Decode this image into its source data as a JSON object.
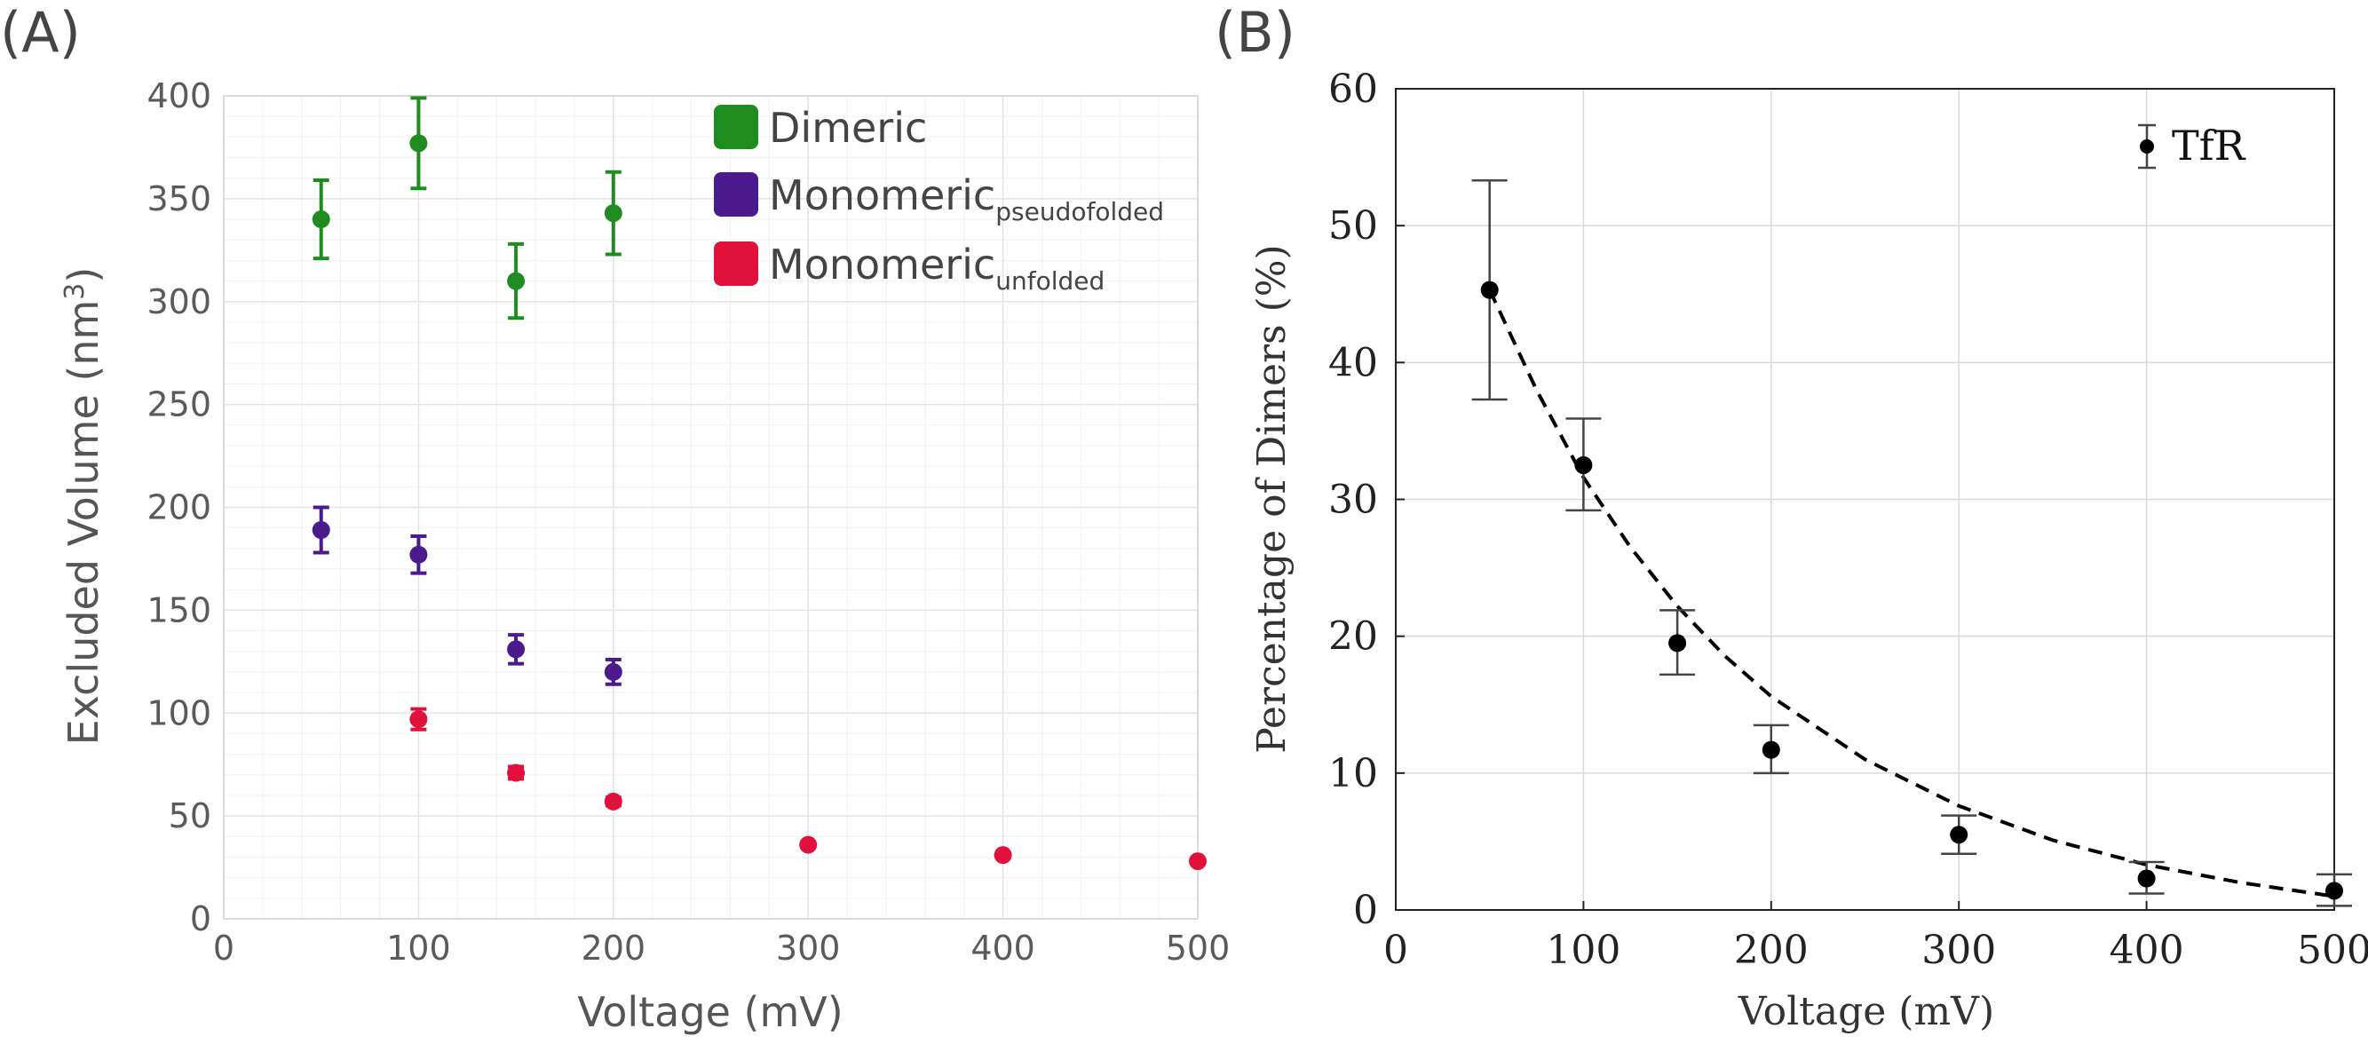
{
  "colors": {
    "dimeric": "#1e8c1e",
    "pseudofolded": "#4b1a8c",
    "unfolded": "#e0123c",
    "tfr": "#000000",
    "axis_text_a": "#5a5a5a",
    "grid_a": "#e4e4e4",
    "grid_minor_a": "#f2f2f2",
    "grid_b": "#d9d9d9"
  },
  "chart_data": [
    {
      "panel_label": "(A)",
      "type": "scatter",
      "title": "",
      "xlabel": "Voltage (mV)",
      "ylabel_main": "Excluded Volume (nm",
      "ylabel_sup": "3",
      "ylabel_end": ")",
      "xlim": [
        0,
        500
      ],
      "ylim": [
        0,
        400
      ],
      "xticks": [
        0,
        100,
        200,
        300,
        400,
        500
      ],
      "yticks": [
        0,
        50,
        100,
        150,
        200,
        250,
        300,
        350,
        400
      ],
      "grid": true,
      "legend_position": "top-right",
      "series": [
        {
          "name": "Dimeric",
          "legend_main": "Dimeric",
          "legend_sub": "",
          "color_key": "dimeric",
          "points": [
            {
              "x": 50,
              "y": 340,
              "err": 19
            },
            {
              "x": 100,
              "y": 377,
              "err": 22
            },
            {
              "x": 150,
              "y": 310,
              "err": 18
            },
            {
              "x": 200,
              "y": 343,
              "err": 20
            }
          ]
        },
        {
          "name": "Monomeric pseudofolded",
          "legend_main": "Monomeric",
          "legend_sub": "pseudofolded",
          "color_key": "pseudofolded",
          "points": [
            {
              "x": 50,
              "y": 189,
              "err": 11
            },
            {
              "x": 100,
              "y": 177,
              "err": 9
            },
            {
              "x": 150,
              "y": 131,
              "err": 7
            },
            {
              "x": 200,
              "y": 120,
              "err": 6
            }
          ]
        },
        {
          "name": "Monomeric unfolded",
          "legend_main": "Monomeric",
          "legend_sub": "unfolded",
          "color_key": "unfolded",
          "points": [
            {
              "x": 100,
              "y": 97,
              "err": 5
            },
            {
              "x": 150,
              "y": 71,
              "err": 3
            },
            {
              "x": 200,
              "y": 57,
              "err": 2
            },
            {
              "x": 300,
              "y": 36,
              "err": 1
            },
            {
              "x": 400,
              "y": 31,
              "err": 1
            },
            {
              "x": 500,
              "y": 28,
              "err": 1
            }
          ]
        }
      ]
    },
    {
      "panel_label": "(B)",
      "type": "scatter",
      "title": "",
      "xlabel": "Voltage (mV)",
      "ylabel": "Percentage of Dimers (%)",
      "xlim": [
        0,
        500
      ],
      "ylim": [
        0,
        60
      ],
      "xticks": [
        0,
        100,
        200,
        300,
        400,
        500
      ],
      "yticks": [
        0,
        10,
        20,
        30,
        40,
        50,
        60
      ],
      "grid": true,
      "legend_position": "top-right",
      "series": [
        {
          "name": "TfR",
          "color_key": "tfr",
          "points": [
            {
              "x": 50,
              "y": 45.3,
              "lo": 37.3,
              "hi": 53.3
            },
            {
              "x": 100,
              "y": 32.5,
              "lo": 29.2,
              "hi": 35.9
            },
            {
              "x": 150,
              "y": 19.5,
              "lo": 17.2,
              "hi": 21.9
            },
            {
              "x": 200,
              "y": 11.7,
              "lo": 10.0,
              "hi": 13.5
            },
            {
              "x": 300,
              "y": 5.5,
              "lo": 4.1,
              "hi": 6.9
            },
            {
              "x": 400,
              "y": 2.3,
              "lo": 1.2,
              "hi": 3.5
            },
            {
              "x": 500,
              "y": 1.4,
              "lo": 0.3,
              "hi": 2.6
            }
          ]
        }
      ],
      "fit": {
        "style": "dashed",
        "model": "exponential",
        "points": [
          {
            "x": 50,
            "y": 45.3
          },
          {
            "x": 75,
            "y": 38.0
          },
          {
            "x": 100,
            "y": 31.6
          },
          {
            "x": 125,
            "y": 26.5
          },
          {
            "x": 150,
            "y": 22.2
          },
          {
            "x": 175,
            "y": 18.6
          },
          {
            "x": 200,
            "y": 15.6
          },
          {
            "x": 250,
            "y": 11.0
          },
          {
            "x": 300,
            "y": 7.6
          },
          {
            "x": 350,
            "y": 5.1
          },
          {
            "x": 400,
            "y": 3.3
          },
          {
            "x": 450,
            "y": 2.0
          },
          {
            "x": 500,
            "y": 1.0
          }
        ]
      }
    }
  ]
}
